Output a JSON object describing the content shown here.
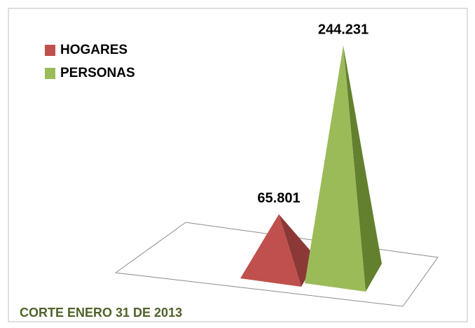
{
  "chart_data": {
    "type": "pyramid",
    "series": [
      {
        "name": "HOGARES",
        "color": "#c0504d",
        "shade": "#8c3836",
        "values": [
          65801
        ],
        "value_labels": [
          "65.801"
        ]
      },
      {
        "name": "PERSONAS",
        "color": "#9bbb59",
        "shade": "#62802e",
        "values": [
          244231
        ],
        "value_labels": [
          "244.231"
        ]
      }
    ],
    "annotation": "CORTE  ENERO  31 DE 2013",
    "annotation_color": "#4f6228",
    "legend": "top-left"
  }
}
